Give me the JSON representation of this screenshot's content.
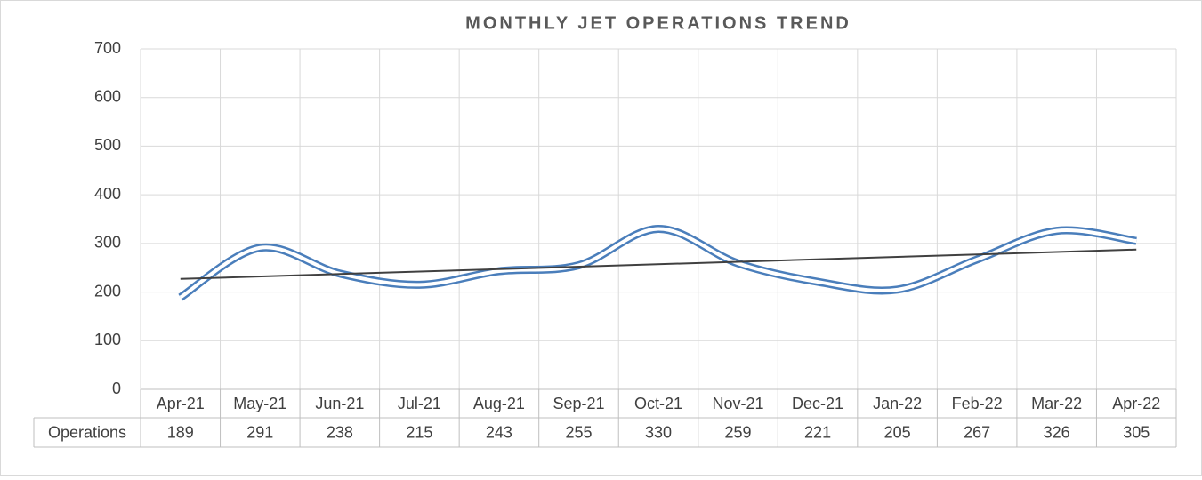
{
  "chart_data": {
    "type": "line",
    "title": "MONTHLY JET OPERATIONS TREND",
    "categories": [
      "Apr-21",
      "May-21",
      "Jun-21",
      "Jul-21",
      "Aug-21",
      "Sep-21",
      "Oct-21",
      "Nov-21",
      "Dec-21",
      "Jan-22",
      "Feb-22",
      "Mar-22",
      "Apr-22"
    ],
    "series": [
      {
        "name": "Operations",
        "color": "#4a7ebb",
        "values": [
          189,
          291,
          238,
          215,
          243,
          255,
          330,
          259,
          221,
          205,
          267,
          326,
          305
        ]
      }
    ],
    "ylim": [
      0,
      700
    ],
    "yticks": [
      0,
      100,
      200,
      300,
      400,
      500,
      600,
      700
    ],
    "grid": true,
    "smooth": true,
    "trendline": "linear",
    "trendline_color": "#404040",
    "data_table": true
  }
}
